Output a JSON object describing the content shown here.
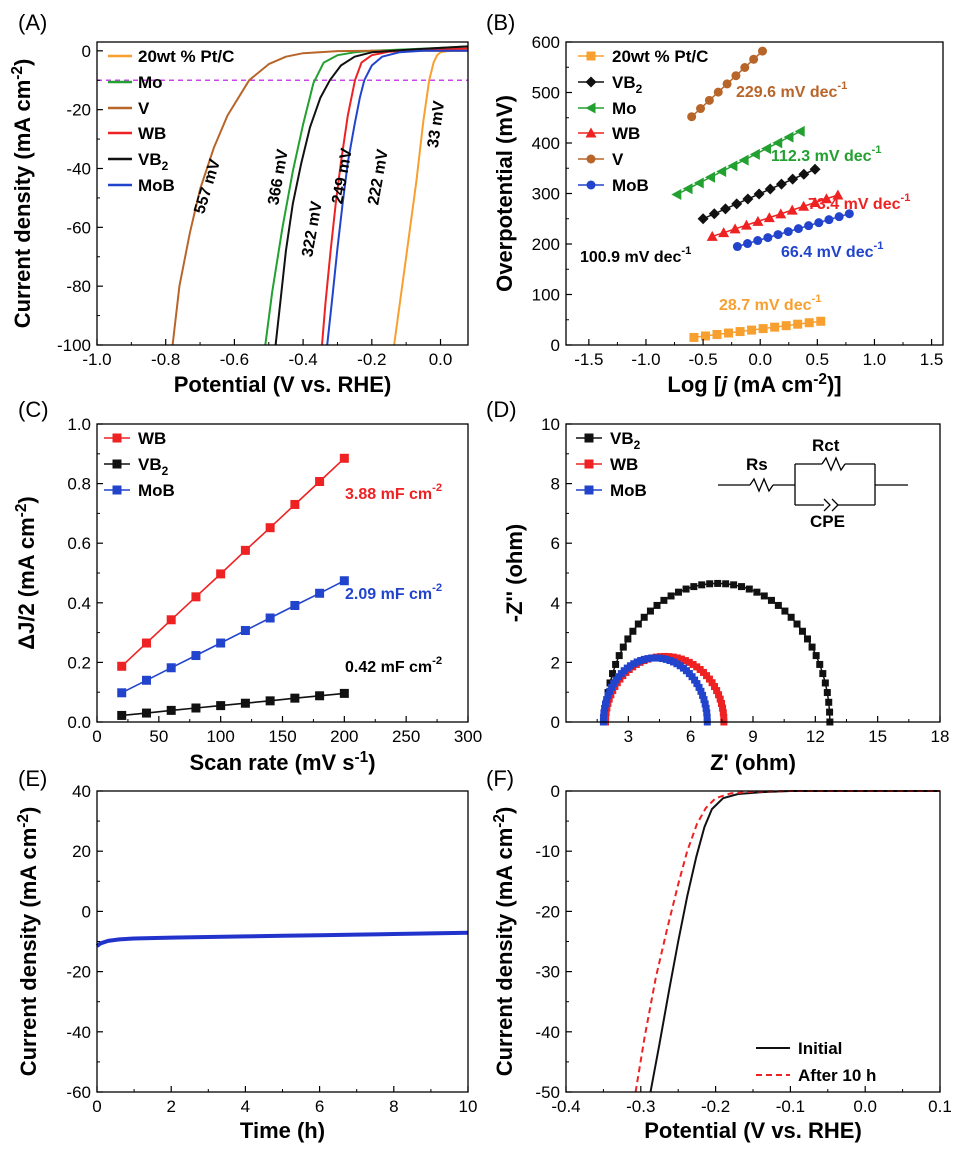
{
  "figure": {
    "panels": [
      {
        "label": "(A)",
        "xlabel": "Potential (V vs. RHE)",
        "ylabel": "Current density (mA cm^-2)",
        "ylabel_base": "Current density (mA cm",
        "ylabel_sup": "-2",
        "ylabel_tail": ")",
        "xticks": [
          "-1.0",
          "-0.8",
          "-0.6",
          "-0.4",
          "-0.2",
          "0.0"
        ],
        "yticks": [
          "0",
          "-20",
          "-40",
          "-60",
          "-80",
          "-100"
        ],
        "legend": [
          "20wt % Pt/C",
          "Mo",
          "V",
          "WB",
          "VB2",
          "MoB"
        ],
        "annotations": [
          "557 mV",
          "366 mV",
          "322 mV",
          "249 mV",
          "222 mV",
          "33 mV"
        ]
      },
      {
        "label": "(B)",
        "xlabel": "Log [j (mA cm^-2)]",
        "ylabel": "Overpotential (mV)",
        "xticks": [
          "-1.5",
          "-1.0",
          "-0.5",
          "0.0",
          "0.5",
          "1.0",
          "1.5"
        ],
        "yticks": [
          "0",
          "100",
          "200",
          "300",
          "400",
          "500",
          "600"
        ],
        "legend": [
          "20wt % Pt/C",
          "VB2",
          "Mo",
          "WB",
          "V",
          "MoB"
        ],
        "annotations": [
          "229.6 mV dec-1",
          "112.3 mV dec-1",
          "73.4 mV dec-1",
          "100.9 mV dec-1",
          "66.4 mV dec-1",
          "28.7 mV dec-1"
        ]
      },
      {
        "label": "(C)",
        "xlabel": "Scan rate (mV s-1)",
        "ylabel": "ΔJ/2 (mA cm-2)",
        "xticks": [
          "0",
          "50",
          "100",
          "150",
          "200",
          "250",
          "300"
        ],
        "yticks": [
          "0.0",
          "0.2",
          "0.4",
          "0.6",
          "0.8",
          "1.0"
        ],
        "legend": [
          "WB",
          "VB2",
          "MoB"
        ],
        "annotations": [
          "3.88 mF cm-2",
          "2.09 mF cm-2",
          "0.42 mF cm-2"
        ]
      },
      {
        "label": "(D)",
        "xlabel": "Z' (ohm)",
        "ylabel": "-Z'' (ohm)",
        "xticks": [
          "3",
          "6",
          "9",
          "12",
          "15",
          "18"
        ],
        "yticks": [
          "0",
          "2",
          "4",
          "6",
          "8",
          "10"
        ],
        "legend": [
          "VB2",
          "WB",
          "MoB"
        ],
        "circuit": [
          "Rs",
          "Rct",
          "CPE"
        ]
      },
      {
        "label": "(E)",
        "xlabel": "Time (h)",
        "ylabel": "Current density (mA cm-2)",
        "xticks": [
          "0",
          "2",
          "4",
          "6",
          "8",
          "10"
        ],
        "yticks": [
          "40",
          "20",
          "0",
          "-20",
          "-40",
          "-60"
        ]
      },
      {
        "label": "(F)",
        "xlabel": "Potential (V vs. RHE)",
        "ylabel": "Current density (mA cm-2)",
        "xticks": [
          "-0.4",
          "-0.3",
          "-0.2",
          "-0.1",
          "0.0",
          "0.1"
        ],
        "yticks": [
          "0",
          "-10",
          "-20",
          "-30",
          "-40",
          "-50"
        ],
        "legend": [
          "Initial",
          "After 10 h"
        ]
      }
    ]
  },
  "chart_data": [
    {
      "panel": "(A)",
      "type": "line",
      "xlabel": "Potential (V vs. RHE)",
      "ylabel": "Current density (mA cm-2)",
      "xlim": [
        -1.0,
        0.08
      ],
      "ylim": [
        -100,
        3
      ],
      "reference_line": {
        "y": -10,
        "style": "dashed",
        "color": "#cc44ee"
      },
      "series": [
        {
          "name": "20wt % Pt/C",
          "color": "#f7a030",
          "x": [
            -0.135,
            -0.1,
            -0.07,
            -0.05,
            -0.033,
            -0.02,
            -0.01,
            0.0,
            0.02,
            0.05,
            0.08
          ],
          "y": [
            -100,
            -70,
            -44,
            -24,
            -10,
            -4,
            -1.5,
            -0.5,
            -0.1,
            0,
            0
          ]
        },
        {
          "name": "Mo",
          "color": "#22a030",
          "x": [
            -0.51,
            -0.49,
            -0.46,
            -0.43,
            -0.4,
            -0.37,
            -0.34,
            -0.3,
            -0.25,
            -0.2,
            -0.1,
            0.0,
            0.08
          ],
          "y": [
            -100,
            -82,
            -60,
            -41,
            -25,
            -11,
            -4,
            -1.5,
            -0.5,
            0,
            0.5,
            1,
            1.5
          ]
        },
        {
          "name": "V",
          "color": "#b8652a",
          "x": [
            -0.78,
            -0.76,
            -0.73,
            -0.7,
            -0.66,
            -0.62,
            -0.557,
            -0.5,
            -0.45,
            -0.4,
            -0.3,
            -0.2,
            0.0,
            0.08
          ],
          "y": [
            -100,
            -80,
            -62,
            -47,
            -33,
            -22,
            -10,
            -4.5,
            -2,
            -0.8,
            -0.1,
            0,
            0,
            0
          ]
        },
        {
          "name": "WB",
          "color": "#ee2222",
          "x": [
            -0.345,
            -0.335,
            -0.32,
            -0.305,
            -0.29,
            -0.27,
            -0.249,
            -0.23,
            -0.2,
            -0.15,
            -0.1,
            0.0,
            0.08
          ],
          "y": [
            -100,
            -86,
            -68,
            -52,
            -38,
            -22,
            -10,
            -4,
            -1.5,
            -0.3,
            0,
            0.4,
            0.8
          ]
        },
        {
          "name": "VB2",
          "color": "#111111",
          "x": [
            -0.48,
            -0.465,
            -0.45,
            -0.43,
            -0.405,
            -0.38,
            -0.35,
            -0.322,
            -0.29,
            -0.25,
            -0.2,
            -0.1,
            0.0,
            0.08
          ],
          "y": [
            -100,
            -84,
            -68,
            -52,
            -38,
            -26,
            -16,
            -10,
            -5,
            -2,
            -0.5,
            0.3,
            1,
            1.5
          ]
        },
        {
          "name": "MoB",
          "color": "#2244cc",
          "x": [
            -0.33,
            -0.315,
            -0.3,
            -0.285,
            -0.27,
            -0.25,
            -0.235,
            -0.222,
            -0.2,
            -0.17,
            -0.12,
            -0.05,
            0.0,
            0.08
          ],
          "y": [
            -100,
            -84,
            -67,
            -52,
            -38,
            -25,
            -16,
            -10,
            -5,
            -2,
            -0.5,
            0,
            0,
            0
          ]
        }
      ],
      "overpotential_labels_mV": {
        "V": 557,
        "Mo": 366,
        "VB2": 322,
        "WB": 249,
        "MoB": 222,
        "20wt % Pt/C": 33
      }
    },
    {
      "panel": "(B)",
      "type": "scatter",
      "xlabel": "Log [j (mA cm-2)]",
      "ylabel": "Overpotential (mV)",
      "xlim": [
        -1.7,
        1.6
      ],
      "ylim": [
        0,
        600
      ],
      "series": [
        {
          "name": "20wt % Pt/C",
          "color": "#f7a030",
          "marker": "square",
          "x0": -0.58,
          "x1": 0.53,
          "y0": 15,
          "y1": 47,
          "n": 12,
          "tafel_slope": "28.7 mV dec-1"
        },
        {
          "name": "VB2",
          "color": "#111111",
          "marker": "diamond",
          "x0": -0.5,
          "x1": 0.48,
          "y0": 250,
          "y1": 348,
          "n": 11,
          "tafel_slope": "100.9 mV dec-1"
        },
        {
          "name": "Mo",
          "color": "#22a030",
          "marker": "triangle-left",
          "x0": -0.73,
          "x1": 0.35,
          "y0": 298,
          "y1": 423,
          "n": 12,
          "tafel_slope": "112.3 mV dec-1"
        },
        {
          "name": "WB",
          "color": "#ee2222",
          "marker": "triangle-up",
          "x0": -0.42,
          "x1": 0.68,
          "y0": 215,
          "y1": 297,
          "n": 12,
          "tafel_slope": "73.4 mV dec-1"
        },
        {
          "name": "V",
          "color": "#b8652a",
          "marker": "circle",
          "x0": -0.6,
          "x1": 0.02,
          "y0": 452,
          "y1": 582,
          "n": 9,
          "tafel_slope": "229.6 mV dec-1"
        },
        {
          "name": "MoB",
          "color": "#2244cc",
          "marker": "circle",
          "x0": -0.2,
          "x1": 0.78,
          "y0": 195,
          "y1": 260,
          "n": 12,
          "tafel_slope": "66.4 mV dec-1"
        }
      ]
    },
    {
      "panel": "(C)",
      "type": "line",
      "xlabel": "Scan rate (mV s-1)",
      "ylabel": "ΔJ/2 (mA cm-2)",
      "xlim": [
        0,
        300
      ],
      "ylim": [
        0,
        1.0
      ],
      "x": [
        20,
        40,
        60,
        80,
        100,
        120,
        140,
        160,
        180,
        200
      ],
      "series": [
        {
          "name": "WB",
          "color": "#ee2222",
          "values": [
            0.187,
            0.265,
            0.343,
            0.42,
            0.497,
            0.576,
            0.652,
            0.73,
            0.807,
            0.885
          ],
          "cdl": "3.88 mF cm-2"
        },
        {
          "name": "VB2",
          "color": "#111111",
          "values": [
            0.022,
            0.03,
            0.039,
            0.047,
            0.055,
            0.063,
            0.071,
            0.08,
            0.088,
            0.096
          ],
          "cdl": "0.42 mF cm-2"
        },
        {
          "name": "MoB",
          "color": "#2244cc",
          "values": [
            0.098,
            0.14,
            0.182,
            0.223,
            0.265,
            0.307,
            0.349,
            0.391,
            0.432,
            0.474
          ],
          "cdl": "2.09 mF cm-2"
        }
      ]
    },
    {
      "panel": "(D)",
      "type": "scatter",
      "xlabel": "Z' (ohm)",
      "ylabel": "-Z'' (ohm)",
      "xlim": [
        0,
        18
      ],
      "ylim": [
        0,
        10
      ],
      "series": [
        {
          "name": "VB2",
          "color": "#111111",
          "z_start": 1.9,
          "z_end": 12.7,
          "peak": 4.65
        },
        {
          "name": "WB",
          "color": "#ee2222",
          "z_start": 1.9,
          "z_end": 7.6,
          "peak": 2.2
        },
        {
          "name": "MoB",
          "color": "#2244cc",
          "z_start": 1.8,
          "z_end": 6.8,
          "peak": 2.15
        }
      ]
    },
    {
      "panel": "(E)",
      "type": "line",
      "xlabel": "Time (h)",
      "ylabel": "Current density (mA cm-2)",
      "xlim": [
        0,
        10
      ],
      "ylim": [
        -60,
        40
      ],
      "series": [
        {
          "name": "",
          "color": "#2233cc",
          "x": [
            0,
            0.1,
            0.3,
            0.6,
            1,
            2,
            3,
            4,
            5,
            6,
            7,
            8,
            9,
            10
          ],
          "y": [
            -11.5,
            -10.6,
            -9.8,
            -9.3,
            -9.0,
            -8.7,
            -8.5,
            -8.3,
            -8.1,
            -7.9,
            -7.7,
            -7.5,
            -7.3,
            -7.1
          ]
        }
      ]
    },
    {
      "panel": "(F)",
      "type": "line",
      "xlabel": "Potential (V vs. RHE)",
      "ylabel": "Current density (mA cm-2)",
      "xlim": [
        -0.4,
        0.1
      ],
      "ylim": [
        -50,
        0
      ],
      "series": [
        {
          "name": "Initial",
          "color": "#111111",
          "style": "solid",
          "x": [
            -0.287,
            -0.275,
            -0.262,
            -0.25,
            -0.238,
            -0.226,
            -0.215,
            -0.205,
            -0.19,
            -0.17,
            -0.14,
            -0.1,
            0.0,
            0.1
          ],
          "y": [
            -50,
            -42,
            -33,
            -25,
            -17.5,
            -11,
            -6,
            -3,
            -1.2,
            -0.5,
            -0.2,
            0,
            0,
            0
          ]
        },
        {
          "name": "After 10 h",
          "color": "#ee2222",
          "style": "dashed",
          "x": [
            -0.307,
            -0.295,
            -0.28,
            -0.265,
            -0.25,
            -0.238,
            -0.225,
            -0.213,
            -0.2,
            -0.18,
            -0.15,
            -0.1,
            0.0,
            0.1
          ],
          "y": [
            -50,
            -41,
            -31,
            -23,
            -15.5,
            -10,
            -5.5,
            -2.8,
            -1.2,
            -0.4,
            -0.1,
            0,
            0,
            0
          ]
        }
      ]
    }
  ]
}
